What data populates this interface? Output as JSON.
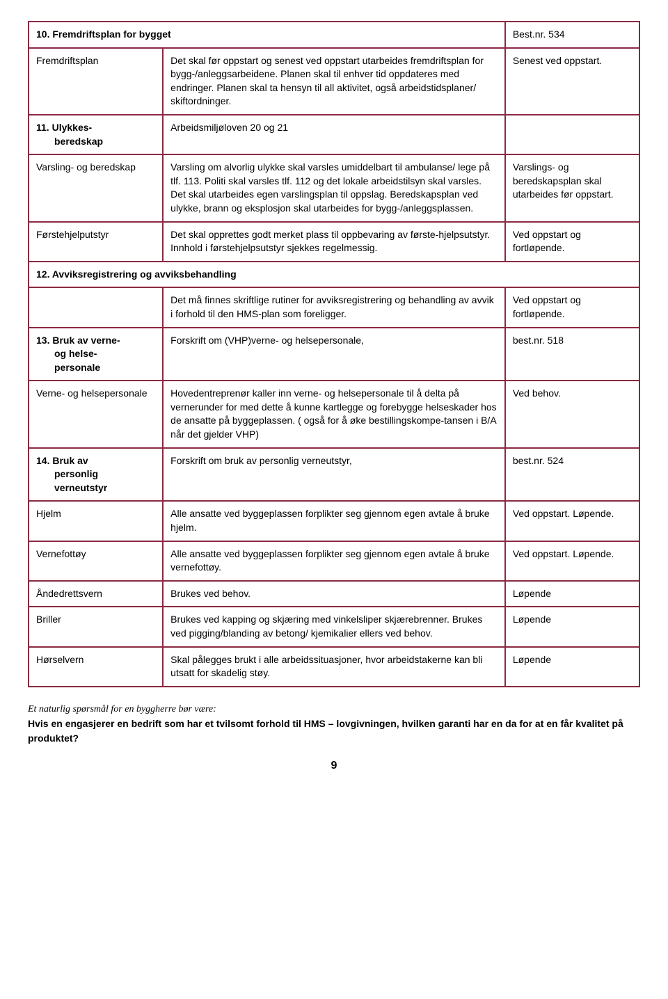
{
  "colors": {
    "border": "#8b2942",
    "text": "#000000",
    "background": "#ffffff"
  },
  "sections": {
    "s10": {
      "header": "10. Fremdriftsplan for bygget",
      "ref": "Best.nr. 534",
      "rows": [
        {
          "label": "Fremdriftsplan",
          "body": "Det skal før oppstart og senest ved oppstart utarbeides fremdriftsplan for bygg-/anleggsarbeidene. Planen skal til enhver tid oppdateres med endringer. Planen skal ta hensyn til all aktivitet, også arbeidstidsplaner/ skiftordninger.",
          "right": "Senest ved oppstart."
        }
      ]
    },
    "s11": {
      "header": "11. Ulykkes-",
      "header2": "beredskap",
      "body_header": "Arbeidsmiljøloven 20 og 21",
      "rows": [
        {
          "label": "Varsling- og beredskap",
          "body": "Varsling om alvorlig ulykke skal varsles umiddelbart til ambulanse/ lege på tlf. 113. Politi skal varsles tlf. 112 og det lokale arbeidstilsyn skal varsles. Det skal utarbeides egen varslingsplan til oppslag. Beredskapsplan ved ulykke, brann og eksplosjon skal utarbeides for bygg-/anleggsplassen.",
          "right": "Varslings- og beredskapsplan skal utarbeides før oppstart."
        },
        {
          "label": "Førstehjelputstyr",
          "body": "Det skal opprettes godt merket plass til oppbevaring av første-hjelpsutstyr. Innhold i førstehjelpsutstyr sjekkes regelmessig.",
          "right": "Ved oppstart og fortløpende."
        }
      ]
    },
    "s12": {
      "header": "12. Avviksregistrering og avviksbehandling",
      "rows": [
        {
          "label": "",
          "body": "Det må finnes skriftlige rutiner for avviksregistrering og behandling av avvik i forhold til den HMS-plan som foreligger.",
          "right": "Ved oppstart og fortløpende."
        }
      ]
    },
    "s13": {
      "header": "13. Bruk av verne-",
      "header2a": "og helse-",
      "header2b": "personale",
      "body_header": "Forskrift om (VHP)verne- og helsepersonale,",
      "ref": "best.nr. 518",
      "rows": [
        {
          "label": "Verne- og helsepersonale",
          "body": "Hovedentreprenør kaller inn verne- og helsepersonale til å delta på vernerunder for med dette å kunne kartlegge og forebygge helseskader hos de ansatte på byggeplassen. ( også for å øke bestillingskompe-tansen i B/A når det gjelder VHP)",
          "right": "Ved behov."
        }
      ]
    },
    "s14": {
      "header": "14. Bruk av",
      "header2a": "personlig",
      "header2b": "verneutstyr",
      "body_header": "Forskrift om bruk av personlig verneutstyr,",
      "ref": "best.nr. 524",
      "rows": [
        {
          "label": "Hjelm",
          "body": "Alle ansatte ved byggeplassen forplikter seg gjennom egen avtale å bruke hjelm.",
          "right": "Ved oppstart. Løpende."
        },
        {
          "label": "Vernefottøy",
          "body": "Alle ansatte ved byggeplassen forplikter seg gjennom egen avtale å bruke vernefottøy.",
          "right": "Ved oppstart. Løpende."
        },
        {
          "label": "Åndedrettsvern",
          "body": "Brukes ved behov.",
          "right": "Løpende"
        },
        {
          "label": "Briller",
          "body": "Brukes ved kapping og skjæring med vinkelsliper skjærebrenner. Brukes ved pigging/blanding av betong/ kjemikalier ellers ved behov.",
          "right": "Løpende"
        },
        {
          "label": "Hørselvern",
          "body": "Skal pålegges brukt i alle arbeidssituasjoner, hvor arbeidstakerne kan bli utsatt for skadelig støy.",
          "right": "Løpende"
        }
      ]
    }
  },
  "footer": {
    "line1": "Et naturlig spørsmål for en byggherre bør være:",
    "line2": "Hvis en engasjerer en bedrift som har et tvilsomt forhold til HMS – lovgivningen, hvilken garanti har en da for at en får kvalitet på produktet?"
  },
  "page_number": "9"
}
